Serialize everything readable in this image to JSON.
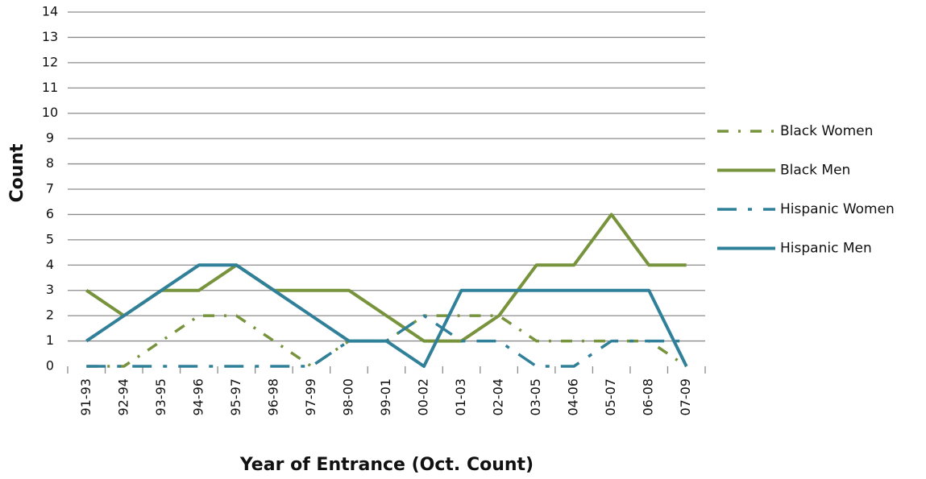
{
  "chart_data": {
    "type": "line",
    "x_label": "Year of Entrance (Oct. Count)",
    "y_label": "Count",
    "categories": [
      "91-93",
      "92-94",
      "93-95",
      "94-96",
      "95-97",
      "96-98",
      "97-99",
      "98-00",
      "99-01",
      "00-02",
      "01-03",
      "02-04",
      "03-05",
      "04-06",
      "05-07",
      "06-08",
      "07-09"
    ],
    "series": [
      {
        "name": "Black Women",
        "color": "#77933c",
        "line_style": "dash-dot",
        "values": [
          0,
          0,
          1,
          2,
          2,
          1,
          0,
          1,
          1,
          2,
          2,
          2,
          1,
          1,
          1,
          1,
          0
        ]
      },
      {
        "name": "Black Men",
        "color": "#77933c",
        "line_style": "solid",
        "values": [
          3,
          2,
          3,
          3,
          4,
          3,
          3,
          3,
          2,
          1,
          1,
          2,
          4,
          4,
          6,
          4,
          4
        ]
      },
      {
        "name": "Hispanic Women",
        "color": "#31809a",
        "line_style": "long-dash-dot",
        "values": [
          0,
          0,
          0,
          0,
          0,
          0,
          0,
          1,
          1,
          2,
          1,
          1,
          0,
          0,
          1,
          1,
          1
        ]
      },
      {
        "name": "Hispanic Men",
        "color": "#31809a",
        "line_style": "solid",
        "values": [
          1,
          2,
          3,
          4,
          4,
          3,
          2,
          1,
          1,
          0,
          3,
          3,
          3,
          3,
          3,
          3,
          0
        ]
      }
    ],
    "ylim": [
      0,
      14
    ],
    "yticks": [
      0,
      1,
      2,
      3,
      4,
      5,
      6,
      7,
      8,
      9,
      10,
      11,
      12,
      13,
      14
    ],
    "grid": true,
    "legend": "right"
  }
}
